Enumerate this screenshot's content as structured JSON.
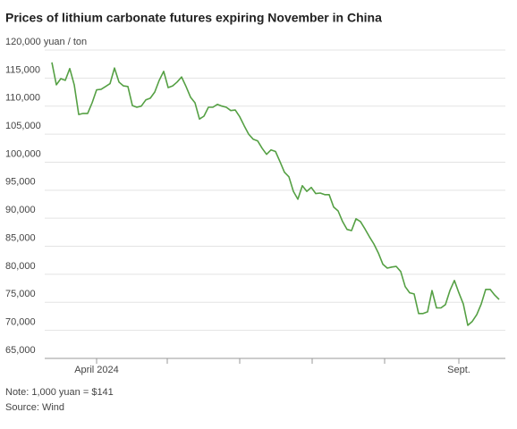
{
  "chart_data": {
    "type": "line",
    "title": "Prices of lithium carbonate futures expiring November in China",
    "notes": [
      "Note: 1,000 yuan = $141",
      "Source: Wind"
    ],
    "categories": [
      null,
      null,
      null,
      null,
      null,
      null,
      null,
      null,
      null,
      null,
      "April 2024",
      null,
      null,
      null,
      null,
      null,
      null,
      null,
      null,
      null,
      null,
      null,
      null,
      null,
      null,
      null,
      null,
      null,
      null,
      null,
      null,
      null,
      null,
      null,
      null,
      null,
      null,
      null,
      null,
      null,
      null,
      null,
      null,
      null,
      null,
      null,
      null,
      null,
      null,
      null,
      null,
      null,
      null,
      null,
      null,
      null,
      null,
      null,
      null,
      null,
      null,
      null,
      null,
      null,
      null,
      null,
      null,
      null,
      null,
      null,
      null,
      null,
      null,
      null,
      null,
      null,
      null,
      null,
      null,
      null,
      null,
      null,
      null,
      null,
      null,
      null,
      null,
      null,
      null,
      null,
      null,
      "Sept.",
      null,
      null,
      null,
      null,
      null,
      null,
      null,
      null,
      null
    ],
    "series": [
      {
        "name": "Lithium carbonate futures",
        "color": "#55a044",
        "values": [
          117800,
          113800,
          114900,
          114600,
          116700,
          113800,
          108500,
          108700,
          108700,
          110600,
          112900,
          113000,
          113500,
          114000,
          116800,
          114300,
          113600,
          113500,
          110100,
          109800,
          110000,
          111100,
          111400,
          112500,
          114600,
          116200,
          113300,
          113600,
          114300,
          115200,
          113500,
          111600,
          110600,
          107700,
          108200,
          109800,
          109800,
          110300,
          110000,
          109800,
          109200,
          109300,
          108100,
          106500,
          105000,
          104100,
          103800,
          102500,
          101400,
          102200,
          101900,
          100100,
          98200,
          97400,
          94800,
          93400,
          95800,
          94800,
          95500,
          94400,
          94500,
          94200,
          94200,
          92000,
          91300,
          89400,
          88000,
          87800,
          89900,
          89400,
          88100,
          86700,
          85400,
          83800,
          81800,
          81100,
          81300,
          81400,
          80500,
          77800,
          76700,
          76500,
          73000,
          73000,
          73300,
          77100,
          74000,
          74000,
          74600,
          77100,
          78900,
          76700,
          74700,
          70900,
          71600,
          72800,
          74700,
          77300,
          77300,
          76300,
          75500
        ]
      }
    ],
    "ylim": [
      65000,
      120000
    ],
    "yticks": [
      {
        "value": 65000,
        "label": "65,000"
      },
      {
        "value": 70000,
        "label": "70,000"
      },
      {
        "value": 75000,
        "label": "75,000"
      },
      {
        "value": 80000,
        "label": "80,000"
      },
      {
        "value": 85000,
        "label": "85,000"
      },
      {
        "value": 90000,
        "label": "90,000"
      },
      {
        "value": 95000,
        "label": "95,000"
      },
      {
        "value": 100000,
        "label": "100,000"
      },
      {
        "value": 105000,
        "label": "105,000"
      },
      {
        "value": 110000,
        "label": "110,000"
      },
      {
        "value": 115000,
        "label": "115,000"
      },
      {
        "value": 120000,
        "label": "120,000 yuan / ton"
      }
    ],
    "grid": true
  }
}
